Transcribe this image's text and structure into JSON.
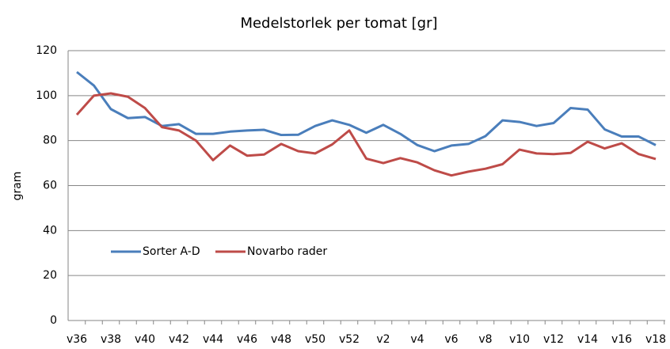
{
  "chart_data": {
    "type": "line",
    "title": "Medelstorlek per tomat [gr]",
    "y_label": "gram",
    "categories": [
      "v36",
      null,
      "v38",
      null,
      "v40",
      null,
      "v42",
      null,
      "v44",
      null,
      "v46",
      null,
      "v48",
      null,
      "v50",
      null,
      "v52",
      null,
      "v2",
      null,
      "v4",
      null,
      "v6",
      null,
      "v8",
      null,
      "v10",
      null,
      "v12",
      null,
      "v14",
      null,
      "v16",
      null,
      "v18"
    ],
    "series": [
      {
        "name": "Sorter A-D",
        "color": "#4a7ebb",
        "values": [
          110.5,
          104.5,
          94,
          90,
          90.5,
          86.5,
          87.3,
          83,
          83,
          84,
          84.5,
          84.8,
          82.5,
          82.6,
          86.5,
          89,
          87,
          83.5,
          87,
          83,
          78,
          75.3,
          77.8,
          78.5,
          82,
          89,
          88.3,
          86.5,
          87.8,
          94.5,
          93.8,
          85,
          81.8,
          81.8,
          78
        ]
      },
      {
        "name": "Novarbo rader",
        "color": "#be4b48",
        "values": [
          91.5,
          100,
          101,
          99.5,
          94.5,
          86,
          84.5,
          80,
          71.3,
          77.8,
          73.3,
          73.8,
          78.5,
          75.3,
          74.3,
          78.3,
          84.5,
          72,
          70,
          72.2,
          70.3,
          66.8,
          64.5,
          66.2,
          67.5,
          69.5,
          76,
          74.3,
          74,
          74.5,
          79.5,
          76.5,
          78.8,
          74,
          71.8
        ]
      }
    ],
    "ylim": [
      0,
      120
    ],
    "yticks": [
      0,
      20,
      40,
      60,
      80,
      100,
      120
    ],
    "grid": true,
    "legend": "lower left"
  }
}
